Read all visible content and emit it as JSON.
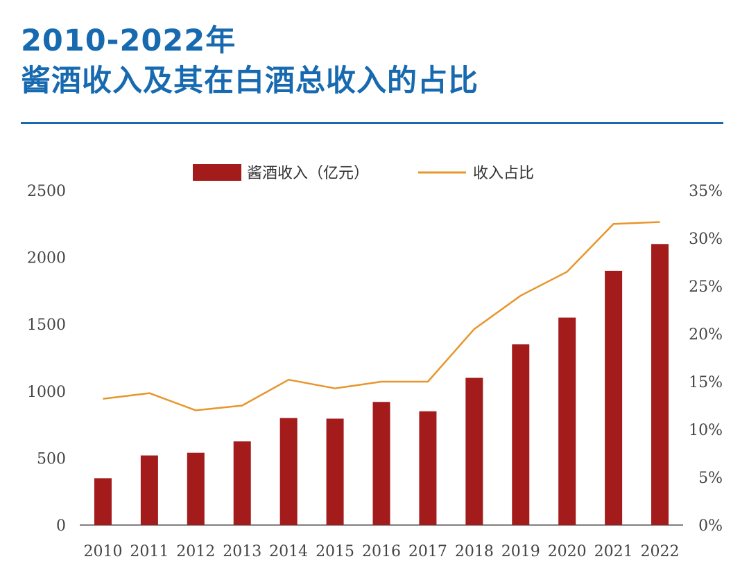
{
  "header": {
    "title_line1": "2010-2022年",
    "title_line2": "酱酒收入及其在白酒总收入的占比"
  },
  "colors": {
    "title": "#1769b0",
    "bar": "#a31b1b",
    "line": "#e8952a"
  },
  "chart_data": {
    "type": "bar",
    "categories": [
      "2010",
      "2011",
      "2012",
      "2013",
      "2014",
      "2015",
      "2016",
      "2017",
      "2018",
      "2019",
      "2020",
      "2021",
      "2022"
    ],
    "series": [
      {
        "name": "酱酒收入（亿元）",
        "type": "bar",
        "axis": "left",
        "values": [
          350,
          520,
          540,
          625,
          800,
          795,
          920,
          850,
          1100,
          1350,
          1550,
          1900,
          2100
        ]
      },
      {
        "name": "收入占比",
        "type": "line",
        "axis": "right",
        "values": [
          13.2,
          13.8,
          12.0,
          12.5,
          15.2,
          14.3,
          15.0,
          15.0,
          20.5,
          24.0,
          26.5,
          31.5,
          31.7
        ]
      }
    ],
    "y_left": {
      "ticks": [
        "0",
        "500",
        "1000",
        "1500",
        "2000",
        "2500"
      ],
      "range": [
        0,
        2500
      ]
    },
    "y_right": {
      "ticks": [
        "0%",
        "5%",
        "10%",
        "15%",
        "20%",
        "25%",
        "30%",
        "35%"
      ],
      "range": [
        0,
        35
      ]
    },
    "legend": {
      "position": "top"
    }
  }
}
